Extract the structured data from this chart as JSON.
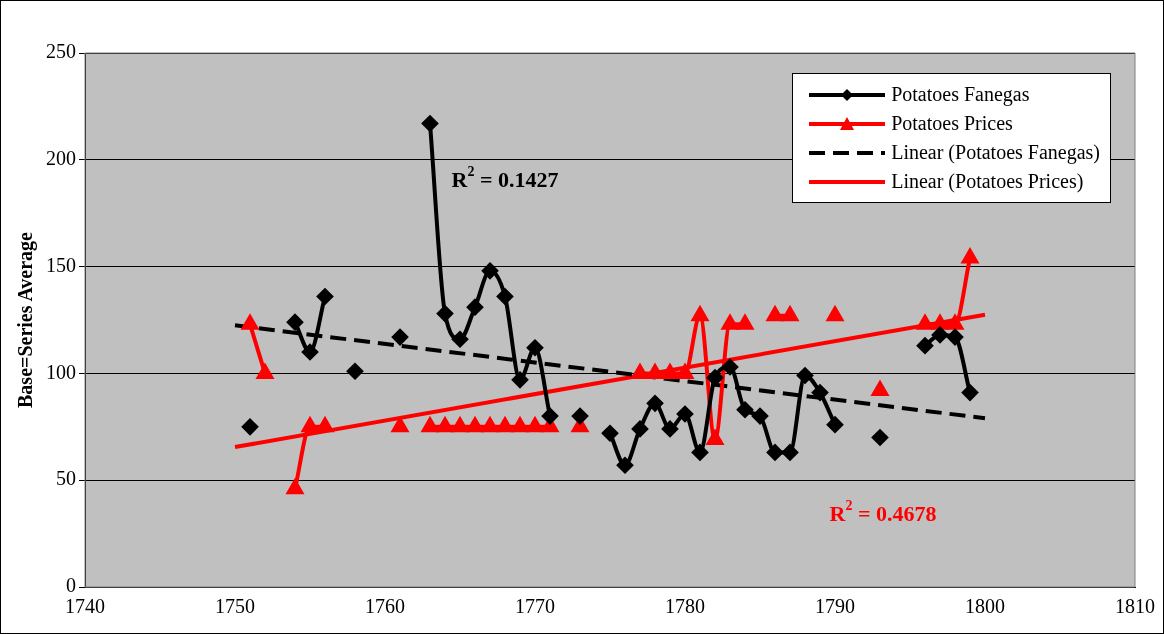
{
  "chart_data": {
    "type": "line",
    "ylabel": "Base=Series Average",
    "x": [
      1750,
      1751,
      1752,
      1753,
      1754,
      1755,
      1756,
      1757,
      1758,
      1759,
      1760,
      1761,
      1762,
      1763,
      1764,
      1765,
      1766,
      1767,
      1768,
      1769,
      1770,
      1771,
      1772,
      1773,
      1774,
      1775,
      1776,
      1777,
      1778,
      1779,
      1780,
      1781,
      1782,
      1783,
      1784,
      1785,
      1786,
      1787,
      1788,
      1789,
      1790,
      1791,
      1792,
      1793,
      1794,
      1795,
      1796,
      1797,
      1798,
      1799,
      1800
    ],
    "series": [
      {
        "name": "Potatoes Fanegas",
        "color": "#000000",
        "marker": "diamond",
        "values": [
          null,
          75,
          null,
          null,
          124,
          110,
          136,
          null,
          101,
          null,
          null,
          117,
          null,
          217,
          128,
          116,
          131,
          148,
          136,
          97,
          112,
          80,
          null,
          80,
          null,
          72,
          57,
          74,
          86,
          74,
          81,
          63,
          98,
          103,
          83,
          80,
          63,
          63,
          99,
          91,
          76,
          null,
          null,
          70,
          null,
          null,
          113,
          118,
          117,
          91,
          null
        ]
      },
      {
        "name": "Potatoes Prices",
        "color": "#ff0000",
        "marker": "triangle",
        "values": [
          null,
          123,
          100,
          null,
          46,
          75,
          75,
          null,
          null,
          null,
          null,
          75,
          null,
          75,
          75,
          75,
          75,
          75,
          75,
          75,
          75,
          75,
          null,
          75,
          null,
          null,
          null,
          100,
          100,
          100,
          100,
          127,
          69,
          123,
          123,
          null,
          127,
          127,
          null,
          null,
          127,
          null,
          null,
          92,
          null,
          null,
          123,
          123,
          123,
          154,
          null
        ]
      },
      {
        "name": "Linear (Potatoes Fanegas)",
        "color": "#000000",
        "marker": "none",
        "line_style": "dashed",
        "values": [
          122.5,
          null,
          null,
          null,
          null,
          null,
          null,
          null,
          null,
          null,
          null,
          null,
          null,
          null,
          null,
          null,
          null,
          null,
          null,
          null,
          null,
          null,
          null,
          null,
          null,
          null,
          null,
          null,
          null,
          null,
          null,
          null,
          null,
          null,
          null,
          null,
          null,
          null,
          null,
          null,
          null,
          null,
          null,
          null,
          null,
          null,
          null,
          null,
          null,
          null,
          79
        ]
      },
      {
        "name": "Linear (Potatoes Prices)",
        "color": "#ff0000",
        "marker": "none",
        "line_style": "solid",
        "values": [
          65.5,
          null,
          null,
          null,
          null,
          null,
          null,
          null,
          null,
          null,
          null,
          null,
          null,
          null,
          null,
          null,
          null,
          null,
          null,
          null,
          null,
          null,
          null,
          null,
          null,
          null,
          null,
          null,
          null,
          null,
          null,
          null,
          null,
          null,
          null,
          null,
          null,
          null,
          null,
          null,
          null,
          null,
          null,
          null,
          null,
          null,
          null,
          null,
          null,
          null,
          127.5
        ]
      }
    ],
    "annotations": [
      "R$^{2}$ = 0.1427",
      "R$^{2}$ = 0.4678"
    ],
    "xlim": [
      1740,
      1810
    ],
    "xticks": [
      1740,
      1750,
      1760,
      1770,
      1780,
      1790,
      1800,
      1810
    ],
    "ylim": [
      0,
      250
    ],
    "yticks": [
      0,
      50,
      100,
      150,
      200,
      250
    ],
    "grid": "y",
    "legend": "top right"
  }
}
